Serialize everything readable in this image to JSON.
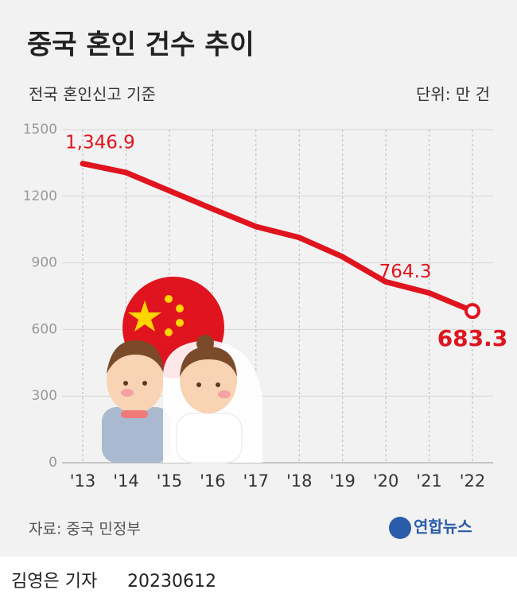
{
  "chart_data": {
    "type": "line",
    "title": "중국 혼인 건수 추이",
    "subtitle": "전국 혼인신고 기준",
    "unit": "단위: 만 건",
    "categories": [
      "'13",
      "'14",
      "'15",
      "'16",
      "'17",
      "'18",
      "'19",
      "'20",
      "'21",
      "'22"
    ],
    "values": [
      1346.9,
      1306.7,
      1224.7,
      1142.8,
      1063.1,
      1013.9,
      927.3,
      814.3,
      764.3,
      683.3
    ],
    "value_labels": [
      "1,346.9",
      null,
      null,
      null,
      null,
      null,
      null,
      null,
      "764.3",
      "683.3"
    ],
    "color": "#e0141e",
    "ylim": [
      0,
      1500
    ],
    "yticks": [
      0,
      300,
      600,
      900,
      1200,
      1500
    ],
    "grid": true,
    "source": "자료: 중국 민정부",
    "logo": "연합뉴스",
    "byline": "김영은 기자",
    "date": "20230612"
  }
}
